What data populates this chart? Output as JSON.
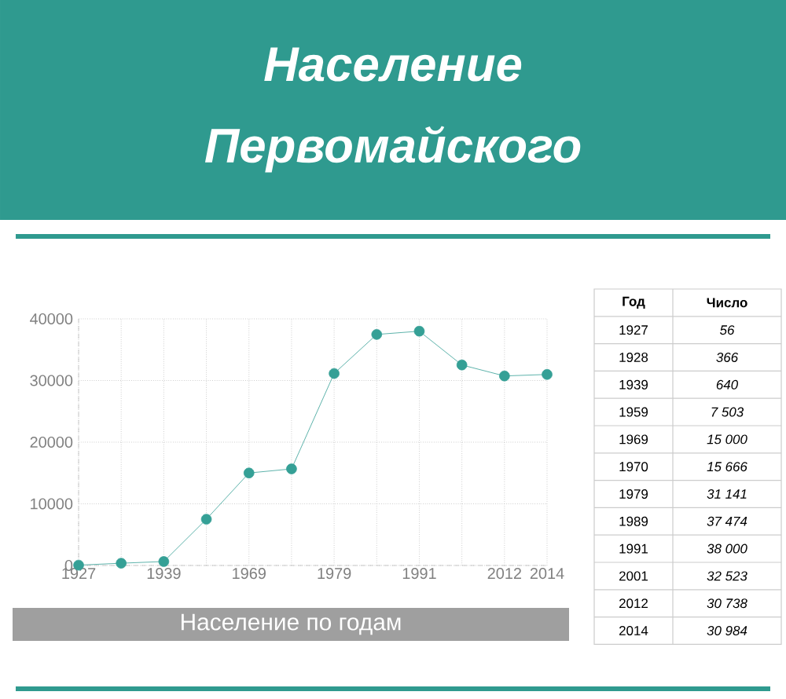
{
  "chart_data": {
    "type": "line",
    "title": "Население Первомайского",
    "xlabel": "Население по годам",
    "categories": [
      "1927",
      null,
      "1939",
      null,
      "1969",
      null,
      "1979",
      null,
      "1991",
      null,
      "2012",
      "2014"
    ],
    "series": [
      {
        "color": "#35a096",
        "values": [
          56,
          366,
          640,
          7503,
          15000,
          15666,
          31141,
          37474,
          38000,
          32523,
          30738,
          30984
        ]
      }
    ],
    "annotations": [
      "Год",
      "Число",
      "1927",
      "1928",
      "1939",
      "1959",
      "1969",
      "1970",
      "1979",
      "1989",
      "1991",
      "2001",
      "2012",
      "2014",
      "56",
      "366",
      "640",
      "7 503",
      "15 000",
      "15 666",
      "31 141",
      "37 474",
      "38 000",
      "32 523",
      "30 738",
      "30 984"
    ],
    "ylim": [
      0,
      40000
    ],
    "yticks": [
      0,
      10000,
      20000,
      30000,
      40000
    ],
    "grid": true,
    "marker": "circle",
    "line_style": "solid"
  }
}
